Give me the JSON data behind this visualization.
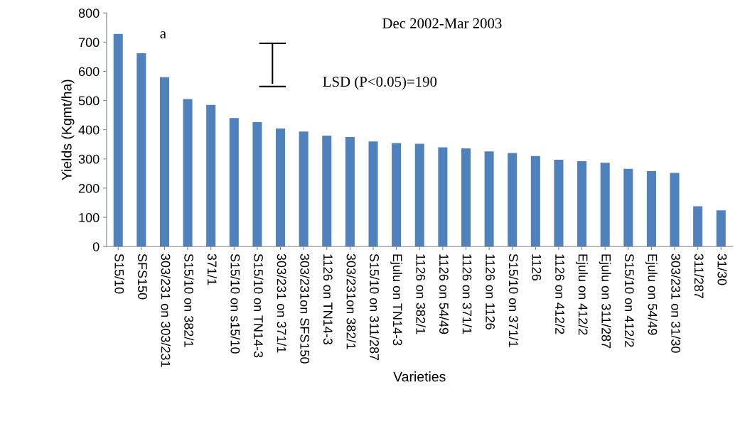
{
  "chart_data": {
    "type": "bar",
    "xlabel": "Varieties",
    "ylabel": "Yields (Kgmt/ha)",
    "categories": [
      "S15/10",
      "SFS150",
      "303/231 on 303/231",
      "S15/10 on 382/1",
      "371/1",
      "S15/10 on s15/10",
      "S15/10 on TN14-3",
      "303/231 on 371/1",
      "303/231on SFS150",
      "1126 on TN14-3",
      "303/231on 382/1",
      "S15/10 on 311/287",
      "Ejulu on TN14-3",
      "1126 on 382/1",
      "1126 on 54/49",
      "1126 on 371/1",
      "1126 on 1126",
      "S15/10 on 371/1",
      "1126",
      "1126 on 412/2",
      "Ejulu on 412/2",
      "Ejulu on 311/287",
      "S15/10 on 412/2",
      "Ejulu on 54/49",
      "303/231 on 31/30",
      "311/287",
      "31/30"
    ],
    "values": [
      728,
      662,
      580,
      505,
      485,
      440,
      426,
      404,
      394,
      380,
      375,
      360,
      354,
      352,
      340,
      336,
      326,
      320,
      310,
      297,
      292,
      287,
      266,
      258,
      252,
      138,
      124
    ],
    "color": "#4f81bd",
    "ylim": [
      0,
      800
    ],
    "yticks": [
      0,
      100,
      200,
      300,
      400,
      500,
      600,
      700,
      800
    ],
    "grid": false,
    "annotations": [
      "Dec 2002-Mar 2003",
      "LSD (P<0.05)=190",
      {
        "text": "a",
        "x": "SFS150",
        "y": 662
      }
    ]
  }
}
